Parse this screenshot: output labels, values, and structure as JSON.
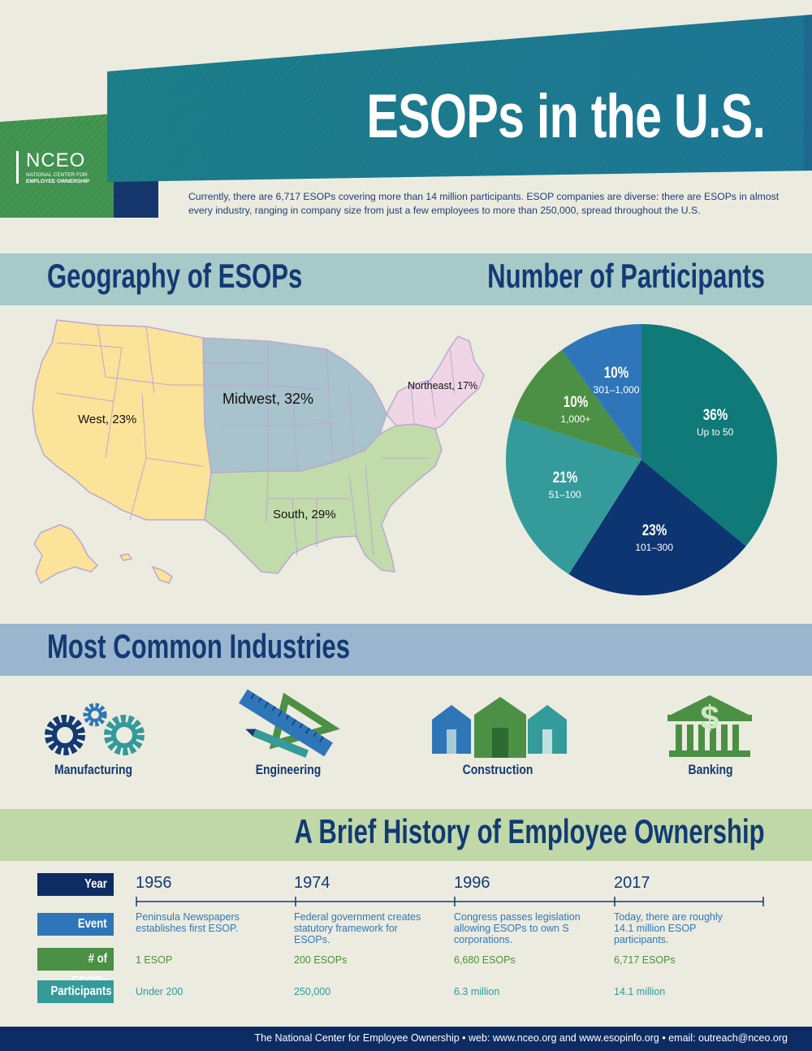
{
  "header": {
    "title": "ESOPs in the U.S.",
    "logo_name": "NCEO",
    "logo_sub1": "NATIONAL CENTER FOR",
    "logo_sub2": "EMPLOYEE OWNERSHIP",
    "intro": "Currently, there are 6,717 ESOPs covering more than 14 million participants. ESOP companies are diverse: there are ESOPs in almost every industry, ranging in company size from just a few employees to more than 250,000, spread throughout the U.S."
  },
  "geography": {
    "title": "Geography of ESOPs",
    "regions": [
      {
        "name": "West, 23%",
        "color": "#fce39a"
      },
      {
        "name": "Midwest, 32%",
        "color": "#a8c3cc"
      },
      {
        "name": "South, 29%",
        "color": "#c2dbab"
      },
      {
        "name": "Northeast, 17%",
        "color": "#efd5e4"
      }
    ]
  },
  "participants": {
    "title": "Number of Participants"
  },
  "chart_data": {
    "type": "pie",
    "slices": [
      {
        "label": "Up to 50",
        "pct_label": "36%",
        "value": 36,
        "color": "#0f7a78"
      },
      {
        "label": "101–300",
        "pct_label": "23%",
        "value": 23,
        "color": "#0d3572"
      },
      {
        "label": "51–100",
        "pct_label": "21%",
        "value": 21,
        "color": "#349b9a"
      },
      {
        "label": "1,000+",
        "pct_label": "10%",
        "value": 10,
        "color": "#4b9044"
      },
      {
        "label": "301–1,000",
        "pct_label": "10%",
        "value": 10,
        "color": "#2f76b8"
      }
    ]
  },
  "industries": {
    "title": "Most Common Industries",
    "items": [
      {
        "label": "Manufacturing",
        "icon": "gears-icon"
      },
      {
        "label": "Engineering",
        "icon": "ruler-triangle-icon"
      },
      {
        "label": "Construction",
        "icon": "houses-icon"
      },
      {
        "label": "Banking",
        "icon": "bank-icon"
      }
    ]
  },
  "history": {
    "title": "A Brief History of Employee Ownership",
    "row_labels": {
      "year": "Year",
      "event": "Event",
      "esops": "# of ESOPs",
      "participants": "Participants"
    },
    "entries": [
      {
        "year": "1956",
        "event": "Peninsula Newspapers establishes first ESOP.",
        "esops": "1 ESOP",
        "participants": "Under 200"
      },
      {
        "year": "1974",
        "event": "Federal government creates statutory framework for ESOPs.",
        "esops": "200 ESOPs",
        "participants": "250,000"
      },
      {
        "year": "1996",
        "event": "Congress passes legislation allowing ESOPs to own S corporations.",
        "esops": "6,680 ESOPs",
        "participants": "6.3 million"
      },
      {
        "year": "2017",
        "event": "Today, there are roughly 14.1 million ESOP participants.",
        "esops": "6,717 ESOPs",
        "participants": "14.1 million"
      }
    ]
  },
  "footer": {
    "text": "The National Center for Employee Ownership  •  web: www.nceo.org and www.esopinfo.org  •  email: outreach@nceo.org"
  }
}
